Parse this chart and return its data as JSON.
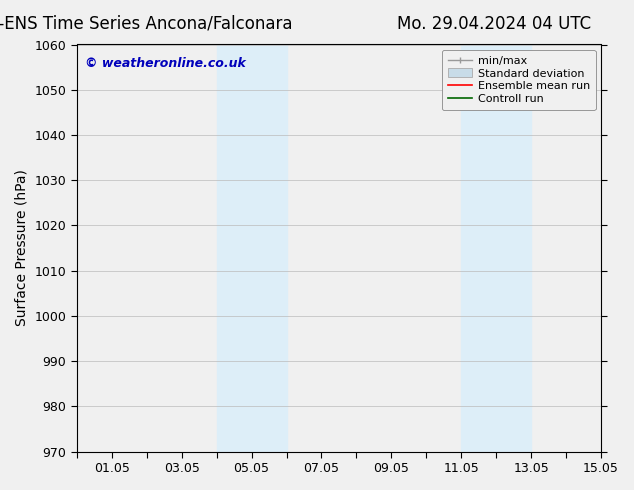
{
  "title_left": "CMC-ENS Time Series Ancona/Falconara",
  "title_right": "Mo. 29.04.2024 04 UTC",
  "ylabel": "Surface Pressure (hPa)",
  "xlim": [
    0,
    15
  ],
  "ylim": [
    970,
    1060
  ],
  "yticks": [
    970,
    980,
    990,
    1000,
    1010,
    1020,
    1030,
    1040,
    1050,
    1060
  ],
  "xtick_labels": [
    "",
    "01.05",
    "",
    "03.05",
    "",
    "05.05",
    "",
    "07.05",
    "",
    "09.05",
    "",
    "11.05",
    "",
    "13.05",
    "",
    "15.05"
  ],
  "xtick_positions": [
    0,
    1,
    2,
    3,
    4,
    5,
    6,
    7,
    8,
    9,
    10,
    11,
    12,
    13,
    14,
    15
  ],
  "shaded_bands": [
    {
      "x_start": 4.0,
      "x_end": 6.0
    },
    {
      "x_start": 11.0,
      "x_end": 13.0
    }
  ],
  "shade_color": "#ddeef8",
  "watermark_text": "© weatheronline.co.uk",
  "watermark_color": "#0000bb",
  "legend_entries": [
    {
      "label": "min/max"
    },
    {
      "label": "Standard deviation"
    },
    {
      "label": "Ensemble mean run"
    },
    {
      "label": "Controll run"
    }
  ],
  "bg_color": "#f0f0f0",
  "plot_bg_color": "#f0f0f0",
  "title_fontsize": 12,
  "axis_fontsize": 10,
  "tick_fontsize": 9,
  "legend_fontsize": 8
}
